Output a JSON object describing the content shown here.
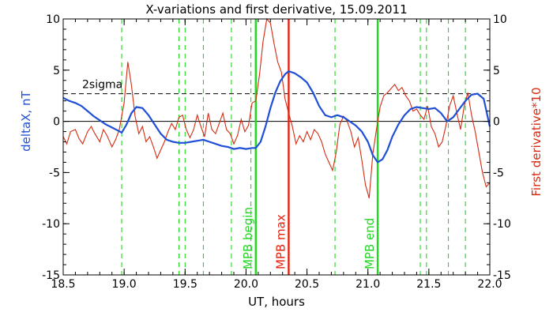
{
  "chart_data": {
    "type": "line",
    "title": "X-variations and first derivative, 15.09.2011",
    "xlabel": "UT, hours",
    "ylabel_left": "deltaX, nT",
    "ylabel_right": "First derivative*10",
    "xlim": [
      18.5,
      22.0
    ],
    "ylim": [
      -15,
      10
    ],
    "x_ticks": [
      "18.5",
      "19.0",
      "19.5",
      "20.0",
      "20.5",
      "21.0",
      "21.5",
      "22.0"
    ],
    "x_tick_values": [
      18.5,
      19.0,
      19.5,
      20.0,
      20.5,
      21.0,
      21.5,
      22.0
    ],
    "y_ticks_left": [
      "-15",
      "-10",
      "-5",
      "0",
      "5",
      "10"
    ],
    "y_ticks_right": [
      "-15",
      "-10",
      "-5",
      "0",
      "5",
      "10"
    ],
    "y_tick_values": [
      -15,
      -10,
      -5,
      0,
      5,
      10
    ],
    "threshold": {
      "label": "2sigma",
      "value": 2.7
    },
    "colors": {
      "deltaX": "#1f4fd6",
      "derivative": "#d62a10",
      "green_lines": "#22d822",
      "max_line": "#e8200c",
      "axis": "#000000"
    },
    "event_lines": [
      {
        "label": "MPB begin",
        "x": 20.08,
        "color": "#22d822"
      },
      {
        "label": "MPB max",
        "x": 20.35,
        "color": "#e8200c"
      },
      {
        "label": "MPB end",
        "x": 21.08,
        "color": "#22d822"
      }
    ],
    "dashed_green_x": [
      18.98,
      19.45,
      19.5,
      19.65,
      19.88,
      20.04,
      20.73,
      21.43,
      21.48,
      21.66,
      21.8
    ],
    "series": [
      {
        "name": "deltaX",
        "axis": "left",
        "x": [
          18.5,
          18.55,
          18.6,
          18.65,
          18.7,
          18.75,
          18.8,
          18.85,
          18.9,
          18.95,
          18.98,
          19.02,
          19.06,
          19.1,
          19.15,
          19.2,
          19.25,
          19.3,
          19.35,
          19.4,
          19.45,
          19.5,
          19.55,
          19.6,
          19.65,
          19.7,
          19.75,
          19.8,
          19.85,
          19.9,
          19.95,
          20.0,
          20.05,
          20.08,
          20.12,
          20.16,
          20.2,
          20.24,
          20.28,
          20.32,
          20.35,
          20.4,
          20.45,
          20.5,
          20.55,
          20.6,
          20.65,
          20.7,
          20.75,
          20.8,
          20.85,
          20.9,
          20.95,
          21.0,
          21.04,
          21.08,
          21.12,
          21.16,
          21.2,
          21.25,
          21.3,
          21.35,
          21.4,
          21.45,
          21.5,
          21.55,
          21.6,
          21.65,
          21.7,
          21.75,
          21.8,
          21.85,
          21.9,
          21.95,
          22.0
        ],
        "y": [
          2.3,
          2.0,
          1.8,
          1.5,
          1.0,
          0.5,
          0.1,
          -0.3,
          -0.6,
          -0.9,
          -1.1,
          -0.3,
          0.8,
          1.4,
          1.3,
          0.6,
          -0.3,
          -1.2,
          -1.8,
          -2.0,
          -2.1,
          -2.1,
          -2.0,
          -1.9,
          -1.8,
          -2.0,
          -2.2,
          -2.4,
          -2.5,
          -2.7,
          -2.6,
          -2.7,
          -2.6,
          -2.6,
          -2.0,
          -0.5,
          1.3,
          2.8,
          3.9,
          4.6,
          4.9,
          4.7,
          4.3,
          3.8,
          2.8,
          1.5,
          0.6,
          0.4,
          0.6,
          0.4,
          0.0,
          -0.4,
          -1.0,
          -2.0,
          -3.3,
          -4.0,
          -3.7,
          -2.8,
          -1.5,
          -0.3,
          0.6,
          1.2,
          1.4,
          1.3,
          1.2,
          1.3,
          0.8,
          0.0,
          0.4,
          1.2,
          2.0,
          2.6,
          2.7,
          2.2,
          -0.5
        ]
      },
      {
        "name": "First derivative*10",
        "axis": "right",
        "x": [
          18.5,
          18.53,
          18.56,
          18.6,
          18.63,
          18.66,
          18.7,
          18.73,
          18.76,
          18.8,
          18.83,
          18.86,
          18.9,
          18.93,
          18.96,
          19.0,
          19.03,
          19.06,
          19.09,
          19.12,
          19.15,
          19.18,
          19.21,
          19.24,
          19.27,
          19.3,
          19.33,
          19.36,
          19.39,
          19.42,
          19.45,
          19.48,
          19.51,
          19.54,
          19.57,
          19.6,
          19.63,
          19.66,
          19.69,
          19.72,
          19.75,
          19.78,
          19.81,
          19.84,
          19.87,
          19.9,
          19.93,
          19.96,
          19.99,
          20.02,
          20.05,
          20.08,
          20.11,
          20.14,
          20.17,
          20.2,
          20.23,
          20.26,
          20.29,
          20.32,
          20.35,
          20.38,
          20.41,
          20.44,
          20.47,
          20.5,
          20.53,
          20.56,
          20.59,
          20.62,
          20.65,
          20.68,
          20.71,
          20.74,
          20.77,
          20.8,
          20.83,
          20.86,
          20.89,
          20.92,
          20.95,
          20.98,
          21.01,
          21.04,
          21.07,
          21.1,
          21.13,
          21.16,
          21.19,
          21.22,
          21.25,
          21.28,
          21.31,
          21.34,
          21.37,
          21.4,
          21.43,
          21.46,
          21.49,
          21.52,
          21.55,
          21.58,
          21.61,
          21.64,
          21.67,
          21.7,
          21.73,
          21.76,
          21.79,
          21.82,
          21.85,
          21.88,
          21.91,
          21.94,
          21.97,
          22.0
        ],
        "y": [
          -1.5,
          -2.2,
          -1.0,
          -0.8,
          -1.7,
          -2.2,
          -1.0,
          -0.5,
          -1.2,
          -2.0,
          -0.8,
          -1.4,
          -2.5,
          -1.8,
          -0.8,
          1.8,
          5.8,
          3.5,
          0.5,
          -1.2,
          -0.5,
          -2.0,
          -1.5,
          -2.5,
          -3.6,
          -2.8,
          -2.0,
          -1.0,
          -0.2,
          -0.8,
          0.4,
          0.6,
          -0.8,
          -1.6,
          -0.8,
          0.6,
          -0.5,
          -1.5,
          0.8,
          -0.8,
          -1.2,
          -0.2,
          0.8,
          -0.8,
          -1.2,
          -2.2,
          -1.4,
          0.2,
          -1.0,
          -0.4,
          1.8,
          2.0,
          4.5,
          7.8,
          10.0,
          9.6,
          7.6,
          5.8,
          4.8,
          2.2,
          0.8,
          -0.5,
          -2.2,
          -1.4,
          -2.0,
          -1.0,
          -1.8,
          -0.8,
          -1.2,
          -2.0,
          -3.2,
          -4.0,
          -4.8,
          -3.0,
          -0.3,
          0.5,
          0.0,
          -1.0,
          -2.5,
          -1.6,
          -3.8,
          -6.2,
          -7.5,
          -3.2,
          -0.8,
          1.4,
          2.5,
          2.8,
          3.2,
          3.6,
          3.0,
          3.3,
          2.5,
          2.0,
          1.0,
          1.2,
          0.6,
          0.2,
          1.5,
          -0.5,
          -1.2,
          -2.5,
          -2.0,
          -0.4,
          1.5,
          2.5,
          0.8,
          -0.8,
          1.5,
          2.8,
          0.6,
          -1.0,
          -3.0,
          -5.0,
          -6.4,
          -6.0
        ]
      }
    ]
  }
}
